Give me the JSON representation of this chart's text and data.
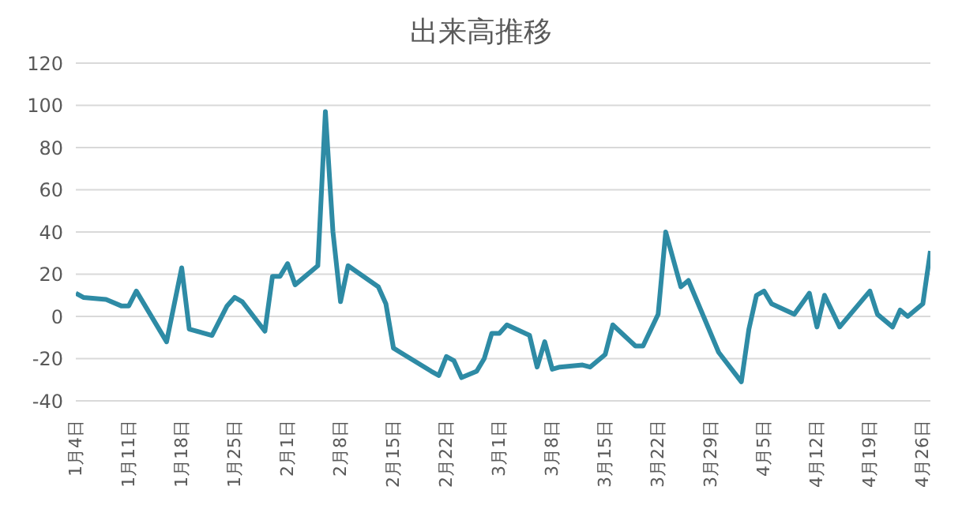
{
  "chart_data": {
    "type": "line",
    "title": "出来高推移",
    "x": [
      "--01-04",
      "--01-05",
      "--01-08",
      "--01-10",
      "--01-11",
      "--01-12",
      "--01-16",
      "--01-18",
      "--01-19",
      "--01-22",
      "--01-24",
      "--01-25",
      "--01-26",
      "--01-29",
      "--01-30",
      "--01-31",
      "--02-01",
      "--02-02",
      "--02-05",
      "--02-06",
      "--02-07",
      "--02-08",
      "--02-09",
      "--02-13",
      "--02-14",
      "--02-15",
      "--02-20",
      "--02-21",
      "--02-22",
      "--02-23",
      "--02-24",
      "--02-26",
      "--02-27",
      "--02-28",
      "--03-01",
      "--03-02",
      "--03-05",
      "--03-06",
      "--03-07",
      "--03-08",
      "--03-09",
      "--03-12",
      "--03-13",
      "--03-15",
      "--03-16",
      "--03-19",
      "--03-20",
      "--03-22",
      "--03-23",
      "--03-25",
      "--03-26",
      "--03-28",
      "--03-30",
      "--04-02",
      "--04-03",
      "--04-04",
      "--04-05",
      "--04-06",
      "--04-09",
      "--04-11",
      "--04-12",
      "--04-13",
      "--04-15",
      "--04-19",
      "--04-20",
      "--04-22",
      "--04-23",
      "--04-24",
      "--04-26",
      "--04-27"
    ],
    "series": [
      {
        "color": "#2e8ba5",
        "values": [
          11,
          9,
          8,
          5,
          5,
          12,
          -12,
          23,
          -6,
          -9,
          5,
          9,
          7,
          -7,
          19,
          19,
          25,
          15,
          24,
          97,
          40,
          7,
          24,
          14,
          6,
          -15,
          -26,
          -28,
          -19,
          -21,
          -29,
          -26,
          -20,
          -8,
          -8,
          -4,
          -9,
          -24,
          -12,
          -25,
          -24,
          -23,
          -24,
          -18,
          -4,
          -14,
          -14,
          1,
          40,
          14,
          17,
          0,
          -17,
          -31,
          -6,
          10,
          12,
          6,
          1,
          11,
          -5,
          10,
          -5,
          12,
          1,
          -5,
          3,
          0,
          6,
          31
        ]
      }
    ],
    "xlim": [
      "--01-04",
      "--04-27"
    ],
    "xticks": [
      {
        "value": "--01-04",
        "label": "1月4日"
      },
      {
        "value": "--01-11",
        "label": "1月11日"
      },
      {
        "value": "--01-18",
        "label": "1月18日"
      },
      {
        "value": "--01-25",
        "label": "1月25日"
      },
      {
        "value": "--02-01",
        "label": "2月1日"
      },
      {
        "value": "--02-08",
        "label": "2月8日"
      },
      {
        "value": "--02-15",
        "label": "2月15日"
      },
      {
        "value": "--02-22",
        "label": "2月22日"
      },
      {
        "value": "--03-01",
        "label": "3月1日"
      },
      {
        "value": "--03-08",
        "label": "3月8日"
      },
      {
        "value": "--03-15",
        "label": "3月15日"
      },
      {
        "value": "--03-22",
        "label": "3月22日"
      },
      {
        "value": "--03-29",
        "label": "3月29日"
      },
      {
        "value": "--04-05",
        "label": "4月5日"
      },
      {
        "value": "--04-12",
        "label": "4月12日"
      },
      {
        "value": "--04-19",
        "label": "4月19日"
      },
      {
        "value": "--04-26",
        "label": "4月26日"
      }
    ],
    "ylim": [
      -40,
      120
    ],
    "yticks": [
      -40,
      -20,
      0,
      20,
      40,
      60,
      80,
      100,
      120
    ],
    "grid": "y",
    "marker": "none",
    "line_style": "solid"
  }
}
